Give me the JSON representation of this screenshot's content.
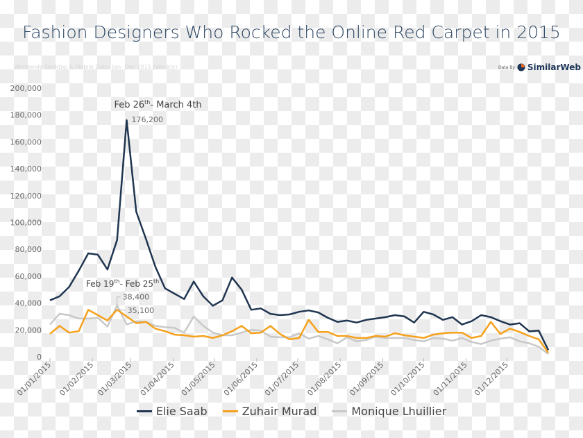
{
  "chart_data": {
    "type": "line",
    "title": "Fashion Designers Who Rocked the Online Red Carpet in 2015",
    "subtitle": "Worldwide Desktop & Mobile Data: Jan- Dec 2015 (Weekly)",
    "source": {
      "prefix": "Data By",
      "name": "SimilarWeb"
    },
    "xlabel": "",
    "ylabel": "",
    "ylim": [
      0,
      200000
    ],
    "yticks": [
      "0",
      "20,000",
      "40,000",
      "60,000",
      "80,000",
      "100,000",
      "120,000",
      "140,000",
      "160,000",
      "180,000",
      "200,000"
    ],
    "x_start": "2015-01-01",
    "x_interval": "weekly",
    "xticks": [
      "01/01/2015",
      "01/02/2015",
      "01/03/2015",
      "01/04/2015",
      "01/05/2015",
      "01/06/2015",
      "01/07/2015",
      "01/08/2015",
      "01/09/2015",
      "01/10/2015",
      "01/11/2015",
      "01/12/2015"
    ],
    "legend_position": "bottom",
    "grid": false,
    "series": [
      {
        "name": "Elie Saab",
        "color": "#1f3550",
        "values": [
          42000,
          45000,
          52000,
          64000,
          77000,
          76000,
          65000,
          87000,
          176200,
          108000,
          88000,
          67000,
          51000,
          47000,
          43000,
          56000,
          45000,
          38000,
          42000,
          59000,
          50000,
          35000,
          36000,
          32000,
          31000,
          31500,
          33500,
          34500,
          33000,
          29000,
          26000,
          27000,
          25500,
          27500,
          28500,
          29500,
          31000,
          30000,
          25500,
          33500,
          31500,
          27500,
          29500,
          24000,
          26500,
          31000,
          29500,
          26500,
          24000,
          25000,
          19000,
          19500,
          5000
        ]
      },
      {
        "name": "Zuhair Murad",
        "color": "#f5a11c",
        "values": [
          17000,
          23000,
          18000,
          19000,
          35000,
          31000,
          27000,
          35100,
          30000,
          25000,
          26000,
          21000,
          19000,
          16500,
          16000,
          15000,
          15500,
          14000,
          16000,
          19000,
          23000,
          17500,
          18000,
          23000,
          17000,
          13000,
          14000,
          27500,
          18500,
          18500,
          15500,
          15500,
          14000,
          14000,
          15500,
          15000,
          17500,
          16000,
          15000,
          14000,
          16500,
          17500,
          18000,
          18000,
          14000,
          15500,
          26000,
          17000,
          21000,
          18500,
          15500,
          13000,
          3000
        ]
      },
      {
        "name": "Monique Lhuillier",
        "color": "#c8c8c8",
        "values": [
          24000,
          32000,
          31000,
          28500,
          28500,
          29000,
          22500,
          38400,
          24000,
          26500,
          26000,
          23000,
          22000,
          21500,
          18000,
          30000,
          23000,
          18000,
          16000,
          16000,
          18000,
          20000,
          19500,
          15000,
          14500,
          14500,
          17500,
          13500,
          15500,
          13000,
          10000,
          14500,
          11500,
          12500,
          15000,
          14000,
          14000,
          14000,
          12500,
          11500,
          14000,
          13500,
          12000,
          14000,
          11000,
          9500,
          12000,
          13500,
          14500,
          11500,
          10000,
          7500,
          2000
        ]
      }
    ],
    "annotations": [
      {
        "label": "Feb 26",
        "sup": "th",
        "rest": "- March 4th",
        "series": 0,
        "index": 8,
        "value_label": "176,200"
      },
      {
        "label": "Feb 19",
        "sup": "th",
        "rest": "- Feb 25",
        "sup2": "th",
        "series": 2,
        "index": 7,
        "value_label": "38,400",
        "value_label2": "35,100"
      }
    ]
  }
}
